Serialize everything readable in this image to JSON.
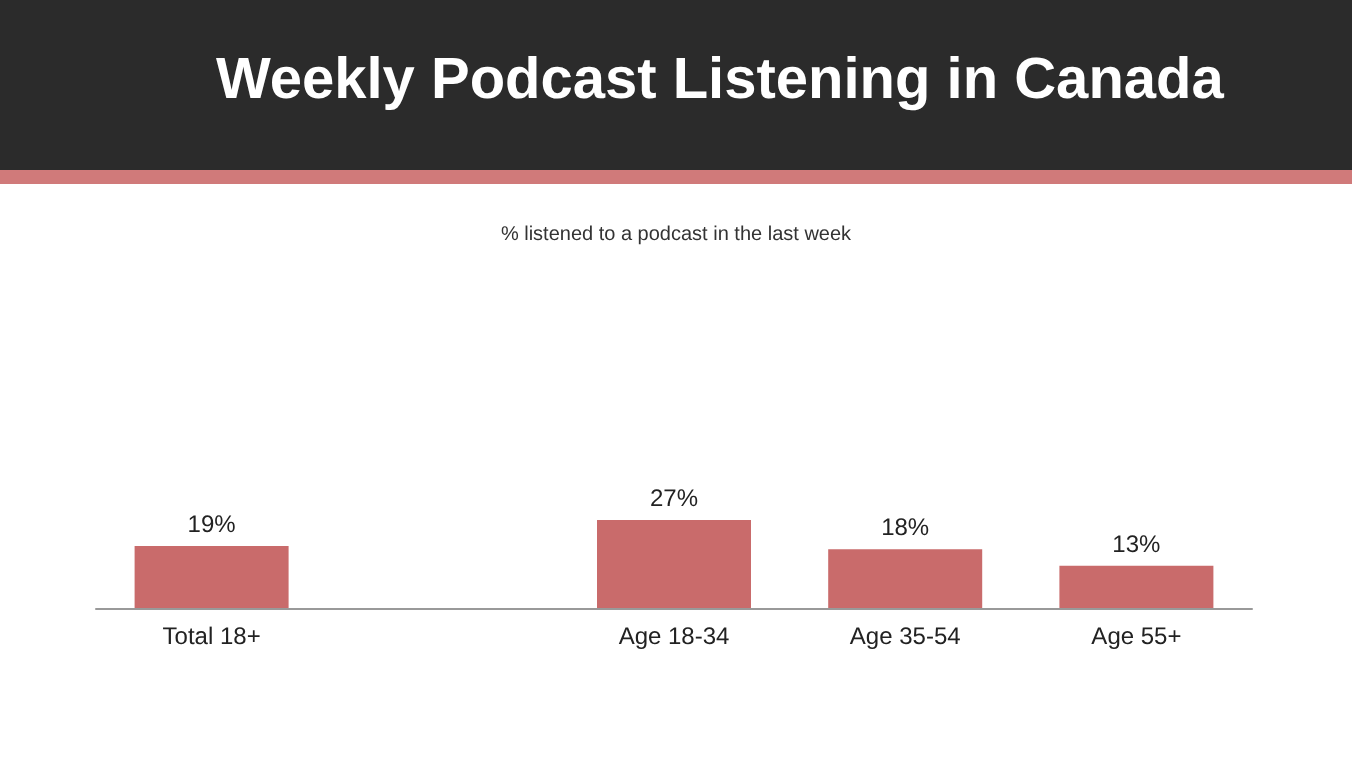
{
  "chart_data": {
    "type": "bar",
    "title": "Weekly Podcast Listening in Canada",
    "subtitle": "% listened to a podcast in the last week",
    "categories": [
      "Total 18+",
      null,
      "Age 18-34",
      "Age 35-54",
      "Age 55+"
    ],
    "values": [
      19,
      null,
      27,
      18,
      13
    ],
    "value_labels": [
      "19%",
      null,
      "27%",
      "18%",
      "13%"
    ],
    "color": "#c96b6b"
  }
}
